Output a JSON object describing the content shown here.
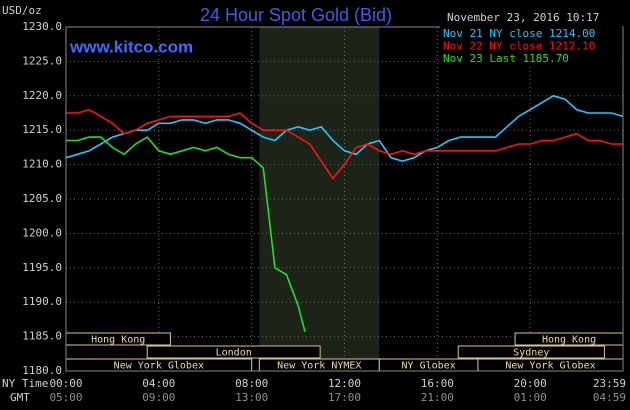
{
  "chart_data": {
    "type": "line",
    "title": "24 Hour Spot Gold (Bid)",
    "y_unit": "USD/oz",
    "watermark": "www.kitco.com",
    "timestamp": "November 23, 2016 10:17",
    "x_axis_label": "NY Time",
    "x2_axis_label": "GMT",
    "xlim": [
      0,
      24
    ],
    "ylim": [
      1180,
      1230
    ],
    "xticks": [
      {
        "value": 0,
        "label": "00:00"
      },
      {
        "value": 4,
        "label": "04:00"
      },
      {
        "value": 8,
        "label": "08:00"
      },
      {
        "value": 12,
        "label": "12:00"
      },
      {
        "value": 16,
        "label": "16:00"
      },
      {
        "value": 20,
        "label": "20:00"
      },
      {
        "value": 23.98,
        "label": "23:59"
      }
    ],
    "x2ticks": [
      {
        "value": 0,
        "label": "05:00"
      },
      {
        "value": 4,
        "label": "09:00"
      },
      {
        "value": 8,
        "label": "13:00"
      },
      {
        "value": 12,
        "label": "17:00"
      },
      {
        "value": 16,
        "label": "21:00"
      },
      {
        "value": 20,
        "label": "01:00"
      },
      {
        "value": 23.98,
        "label": "04:59"
      }
    ],
    "yticks": [
      {
        "value": 1230,
        "label": "1230.0"
      },
      {
        "value": 1225,
        "label": "1225.0"
      },
      {
        "value": 1220,
        "label": "1220.0"
      },
      {
        "value": 1215,
        "label": "1215.0"
      },
      {
        "value": 1210,
        "label": "1210.0"
      },
      {
        "value": 1205,
        "label": "1205.0"
      },
      {
        "value": 1200,
        "label": "1200.0"
      },
      {
        "value": 1195,
        "label": "1195.0"
      },
      {
        "value": 1190,
        "label": "1190.0"
      },
      {
        "value": 1185,
        "label": "1185.0"
      },
      {
        "value": 1180,
        "label": "1180.0"
      }
    ],
    "grid": true,
    "shaded_range": [
      8.33,
      13.5
    ],
    "sessions": [
      {
        "label": "Hong Kong",
        "row": 1,
        "start": 0,
        "end": 4.5
      },
      {
        "label": "London",
        "row": 2,
        "start": 3.5,
        "end": 10.95
      },
      {
        "label": "New York Globex",
        "row": 3,
        "start": 0,
        "end": 8
      },
      {
        "label": "New York NYMEX",
        "row": 3,
        "start": 8.33,
        "end": 13.5
      },
      {
        "label": "NY Globex",
        "row": 3,
        "start": 13.5,
        "end": 17.75
      },
      {
        "label": "Hong Kong",
        "row": 1,
        "start": 19.35,
        "end": 24
      },
      {
        "label": "Sydney",
        "row": 2,
        "start": 16.9,
        "end": 23.2
      },
      {
        "label": "New York Globex",
        "row": 3,
        "start": 17.75,
        "end": 24
      }
    ],
    "series": [
      {
        "name": "Nov 21 NY close 1214.00",
        "color": "#20c8ff",
        "x": [
          0,
          0.5,
          1,
          1.5,
          2,
          2.5,
          3,
          3.5,
          4,
          4.5,
          5,
          5.5,
          6,
          6.5,
          7,
          7.5,
          8,
          8.5,
          9,
          9.5,
          10,
          10.5,
          11,
          11.5,
          12,
          12.5,
          13,
          13.5,
          14,
          14.5,
          15,
          15.5,
          16,
          16.5,
          17,
          17.5,
          18,
          18.5,
          19,
          19.5,
          20,
          20.5,
          21,
          21.5,
          22,
          22.5,
          23,
          23.5,
          24
        ],
        "values": [
          1211,
          1211.5,
          1212,
          1213,
          1214,
          1214.5,
          1215,
          1215,
          1216,
          1216,
          1216.5,
          1216.5,
          1216,
          1216.5,
          1216.5,
          1216,
          1215,
          1214,
          1213.5,
          1215,
          1215.5,
          1215,
          1215.5,
          1213.5,
          1212,
          1211.5,
          1213,
          1213.5,
          1211,
          1210.5,
          1211,
          1212,
          1212.5,
          1213.5,
          1214,
          1214,
          1214,
          1214,
          1215.5,
          1217,
          1218,
          1219,
          1220,
          1219.5,
          1218,
          1217.5,
          1217.5,
          1217.5,
          1217
        ]
      },
      {
        "name": "Nov 22 NY close 1212.10",
        "color": "#ff1010",
        "x": [
          0,
          0.5,
          1,
          1.5,
          2,
          2.5,
          3,
          3.5,
          4,
          4.5,
          5,
          5.5,
          6,
          6.5,
          7,
          7.5,
          8,
          8.5,
          9,
          9.5,
          10,
          10.5,
          11,
          11.5,
          12,
          12.5,
          13,
          13.5,
          14,
          14.5,
          15,
          15.5,
          16,
          16.5,
          17,
          17.5,
          18,
          18.5,
          19,
          19.5,
          20,
          20.5,
          21,
          21.5,
          22,
          22.5,
          23,
          23.5,
          24
        ],
        "values": [
          1217.5,
          1217.5,
          1218,
          1217,
          1216,
          1214.5,
          1215,
          1216,
          1216.5,
          1217,
          1217,
          1217,
          1217,
          1217,
          1217,
          1217.5,
          1216,
          1215,
          1215,
          1215,
          1214,
          1213,
          1210.5,
          1208,
          1210,
          1212.5,
          1213,
          1212,
          1211.5,
          1212,
          1211.5,
          1212,
          1212,
          1212,
          1212,
          1212,
          1212,
          1212,
          1212.5,
          1213,
          1213,
          1213.5,
          1213.5,
          1214,
          1214.5,
          1213.5,
          1213.5,
          1213,
          1213
        ]
      },
      {
        "name": "Nov 23 Last 1185.70",
        "color": "#20e020",
        "x": [
          0,
          0.5,
          1,
          1.5,
          2,
          2.5,
          3,
          3.5,
          4,
          4.5,
          5,
          5.5,
          6,
          6.5,
          7,
          7.5,
          8,
          8.5,
          9,
          9.5,
          10,
          10.3
        ],
        "values": [
          1213.5,
          1213.5,
          1214,
          1214,
          1212.5,
          1211.5,
          1213,
          1214,
          1212,
          1211.5,
          1212,
          1212.5,
          1212,
          1212.5,
          1211.5,
          1211,
          1211,
          1209.5,
          1195,
          1194,
          1189.5,
          1185.7
        ]
      }
    ]
  }
}
